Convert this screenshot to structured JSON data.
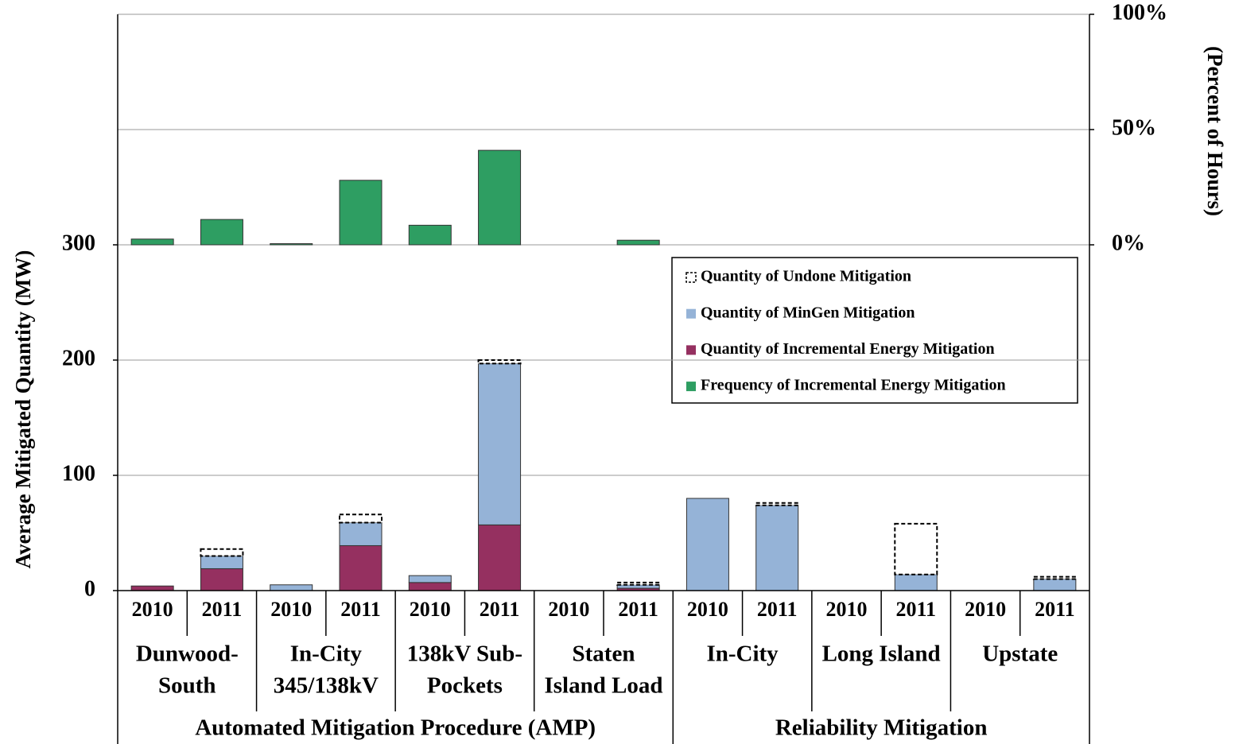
{
  "chart_data": {
    "type": "bar",
    "y_axis_label": "Average Mitigated Quantity (MW)",
    "y2_axis_label": "(Percent of Hours)",
    "categories": [
      "2010",
      "2011",
      "2010",
      "2011",
      "2010",
      "2011",
      "2010",
      "2011",
      "2010",
      "2011",
      "2010",
      "2011",
      "2010",
      "2011"
    ],
    "super_groups": [
      {
        "name": "Automated Mitigation Procedure (AMP)",
        "groups": [
          {
            "name": [
              "Dunwood-",
              "South"
            ]
          },
          {
            "name": [
              "In-City",
              "345/138kV"
            ]
          },
          {
            "name": [
              "138kV Sub-",
              "Pockets"
            ]
          },
          {
            "name": [
              "Staten",
              "Island Load"
            ]
          }
        ]
      },
      {
        "name": "Reliability Mitigation",
        "groups": [
          {
            "name": [
              "In-City"
            ]
          },
          {
            "name": [
              "Long Island"
            ]
          },
          {
            "name": [
              "Upstate"
            ]
          }
        ]
      }
    ],
    "series": [
      {
        "name": "Quantity of Undone Mitigation",
        "color": "#ffffff",
        "values": [
          0,
          6,
          0,
          7,
          0,
          3,
          0,
          2,
          0,
          2,
          0,
          44,
          0,
          2
        ]
      },
      {
        "name": "Quantity of MinGen Mitigation",
        "color": "#95b3d7",
        "values": [
          0,
          11,
          5,
          20,
          6,
          140,
          0,
          3,
          80,
          74,
          0,
          14,
          0,
          10
        ]
      },
      {
        "name": "Quantity of Incremental Energy Mitigation",
        "color": "#953060",
        "values": [
          4,
          19,
          0,
          39,
          7,
          57,
          0,
          2,
          0,
          0,
          0,
          0,
          0,
          0
        ]
      },
      {
        "name": "Frequency of Incremental Energy Mitigation",
        "color": "#2e9e62",
        "axis": "y2",
        "values": [
          2.5,
          11,
          0.5,
          28,
          8.5,
          41,
          0,
          2,
          0,
          0,
          0,
          0,
          0,
          0
        ]
      }
    ],
    "ylim": [
      0,
      500
    ],
    "yticks": [
      0,
      100,
      200,
      300
    ],
    "y2lim": [
      -150,
      100
    ],
    "y2ticks": [
      {
        "value": 0,
        "label": "0%"
      },
      {
        "value": 50,
        "label": "50%"
      },
      {
        "value": 100,
        "label": "100%"
      }
    ],
    "grid": true
  }
}
